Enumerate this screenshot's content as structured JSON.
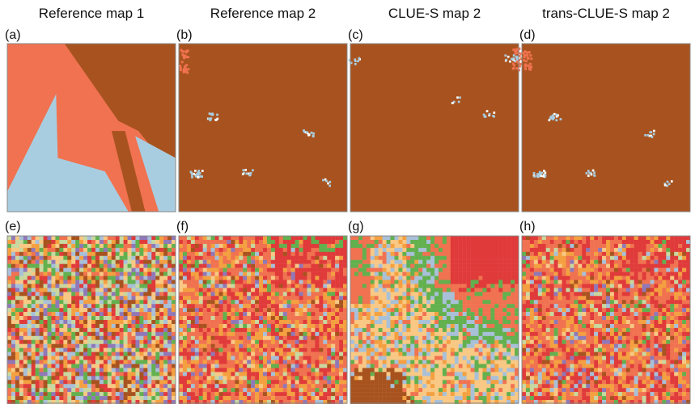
{
  "column_titles": [
    "Reference map 1",
    "Reference map 2",
    "CLUE-S map 2",
    "trans-CLUE-S map 2"
  ],
  "panel_labels": [
    "(a)",
    "(b)",
    "(c)",
    "(d)",
    "(e)",
    "(f)",
    "(g)",
    "(h)"
  ]
}
